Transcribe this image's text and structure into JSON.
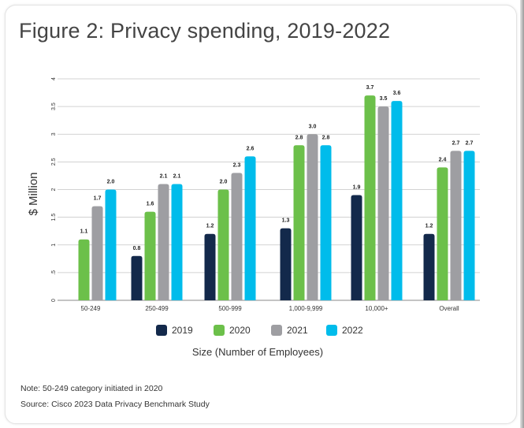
{
  "title": "Figure 2: Privacy spending, 2019-2022",
  "note": "Note: 50-249 category initiated in 2020",
  "source": "Source: Cisco 2023 Data Privacy Benchmark Study",
  "chart_data": {
    "type": "bar",
    "title": "Figure 2: Privacy spending, 2019-2022",
    "xlabel": "Size (Number of Employees)",
    "ylabel": "$ Million",
    "ylim": [
      0,
      4
    ],
    "yticks": [
      "0",
      ".5",
      "1",
      "1.5",
      "2",
      "2.5",
      "3",
      "3.5",
      "4"
    ],
    "grid": true,
    "legend": "bottom",
    "categories": [
      "50-249",
      "250-499",
      "500-999",
      "1,000-9,999",
      "10,000+",
      "Overall"
    ],
    "series": [
      {
        "name": "2019",
        "color": "#13294b",
        "values": [
          null,
          0.8,
          1.2,
          1.3,
          1.9,
          1.2
        ],
        "labels": [
          null,
          "0.8",
          "1.2",
          "1.3",
          "1.9",
          "1.2"
        ]
      },
      {
        "name": "2020",
        "color": "#6cc04a",
        "values": [
          1.1,
          1.6,
          2.0,
          2.8,
          3.7,
          2.4
        ],
        "labels": [
          "1.1",
          "1.6",
          "2.0",
          "2.8",
          "3.7",
          "2.4"
        ]
      },
      {
        "name": "2021",
        "color": "#9e9ea2",
        "values": [
          1.7,
          2.1,
          2.3,
          3.0,
          3.5,
          2.7
        ],
        "labels": [
          "1.7",
          "2.1",
          "2.3",
          "3.0",
          "3.5",
          "2.7"
        ]
      },
      {
        "name": "2022",
        "color": "#00bceb",
        "values": [
          2.0,
          2.1,
          2.6,
          2.8,
          3.6,
          2.7
        ],
        "labels": [
          "2.0",
          "2.1",
          "2.6",
          "2.8",
          "3.6",
          "2.7"
        ]
      }
    ]
  }
}
